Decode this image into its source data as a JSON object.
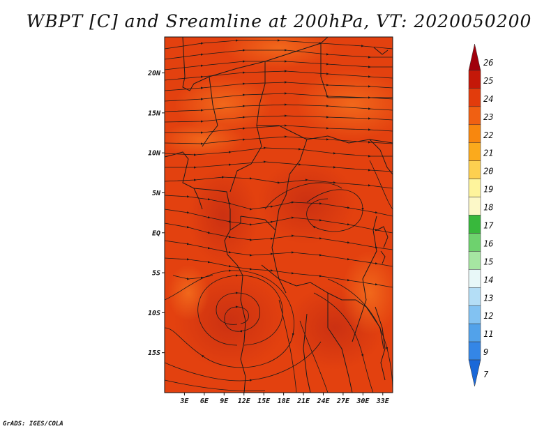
{
  "title": "WBPT [C] and Sreamline at 200hPa, VT: 2020050200",
  "footer": "GrADS: IGES/COLA",
  "map": {
    "lat_labels": [
      {
        "label": "20N",
        "lat": 20
      },
      {
        "label": "15N",
        "lat": 15
      },
      {
        "label": "10N",
        "lat": 10
      },
      {
        "label": "5N",
        "lat": 5
      },
      {
        "label": "EQ",
        "lat": 0
      },
      {
        "label": "5S",
        "lat": -5
      },
      {
        "label": "10S",
        "lat": -10
      },
      {
        "label": "15S",
        "lat": -15
      }
    ],
    "lon_labels": [
      {
        "label": "3E",
        "lon": 3
      },
      {
        "label": "6E",
        "lon": 6
      },
      {
        "label": "9E",
        "lon": 9
      },
      {
        "label": "12E",
        "lon": 12
      },
      {
        "label": "15E",
        "lon": 15
      },
      {
        "label": "18E",
        "lon": 18
      },
      {
        "label": "21E",
        "lon": 21
      },
      {
        "label": "24E",
        "lon": 24
      },
      {
        "label": "27E",
        "lon": 27
      },
      {
        "label": "30E",
        "lon": 30
      },
      {
        "label": "33E",
        "lon": 33
      }
    ],
    "lon_range": [
      0,
      34.5
    ],
    "lat_range": [
      -20,
      24.5
    ],
    "field_colors": {
      "base": "#e3410f",
      "warm": "#f2641b",
      "cool": "#cc3212",
      "coast": "#1a1a1a"
    }
  },
  "colorbar": {
    "labels": [
      "26",
      "25",
      "24",
      "23",
      "22",
      "21",
      "20",
      "19",
      "18",
      "17",
      "16",
      "15",
      "14",
      "13",
      "12",
      "11",
      "9",
      "7"
    ],
    "colors": [
      "#a0000c",
      "#c41808",
      "#e23c0c",
      "#f06012",
      "#f8870e",
      "#fbaa1c",
      "#fdd050",
      "#fef49c",
      "#fcf8c8",
      "#38b83c",
      "#6ed26e",
      "#a6e6a2",
      "#e8f8f8",
      "#b4def6",
      "#82c2f2",
      "#52a2ea",
      "#3486e6",
      "#1a68d8"
    ]
  }
}
